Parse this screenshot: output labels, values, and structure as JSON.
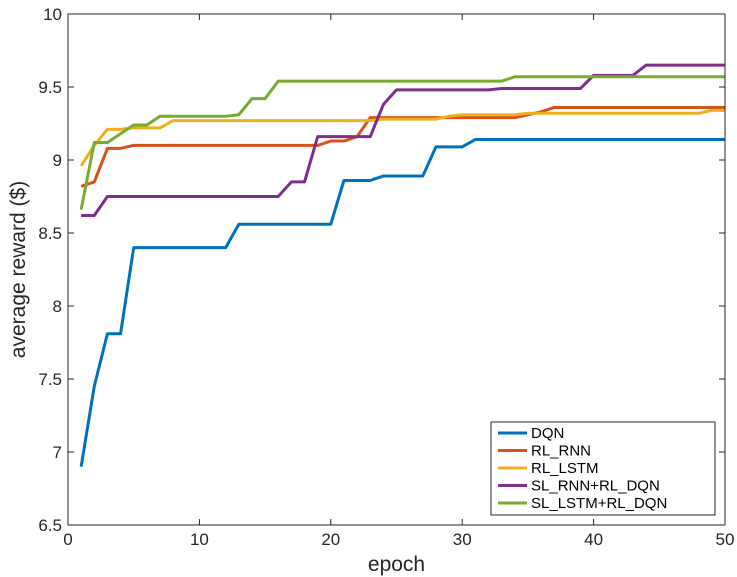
{
  "chart_data": {
    "type": "line",
    "title": "",
    "xlabel": "epoch",
    "ylabel": "average reward ($)",
    "xlim": [
      0,
      50
    ],
    "ylim": [
      6.5,
      10
    ],
    "xticks": [
      "0",
      "10",
      "20",
      "30",
      "40",
      "50"
    ],
    "yticks": [
      "6.5",
      "7",
      "7.5",
      "8",
      "8.5",
      "9",
      "9.5",
      "10"
    ],
    "grid": false,
    "legend_position": "bottom-right",
    "x": [
      1,
      2,
      3,
      4,
      5,
      6,
      7,
      8,
      9,
      10,
      11,
      12,
      13,
      14,
      15,
      16,
      17,
      18,
      19,
      20,
      21,
      22,
      23,
      24,
      25,
      26,
      27,
      28,
      29,
      30,
      31,
      32,
      33,
      34,
      35,
      36,
      37,
      38,
      39,
      40,
      41,
      42,
      43,
      44,
      45,
      46,
      47,
      48,
      49,
      50
    ],
    "series": [
      {
        "name": "DQN",
        "color": "#0072bd",
        "values": [
          6.9,
          7.45,
          7.81,
          7.81,
          8.4,
          8.4,
          8.4,
          8.4,
          8.4,
          8.4,
          8.4,
          8.4,
          8.56,
          8.56,
          8.56,
          8.56,
          8.56,
          8.56,
          8.56,
          8.56,
          8.86,
          8.86,
          8.86,
          8.89,
          8.89,
          8.89,
          8.89,
          9.09,
          9.09,
          9.09,
          9.14,
          9.14,
          9.14,
          9.14,
          9.14,
          9.14,
          9.14,
          9.14,
          9.14,
          9.14,
          9.14,
          9.14,
          9.14,
          9.14,
          9.14,
          9.14,
          9.14,
          9.14,
          9.14,
          9.14
        ]
      },
      {
        "name": "RL_RNN",
        "color": "#d95319",
        "values": [
          8.82,
          8.85,
          9.08,
          9.08,
          9.1,
          9.1,
          9.1,
          9.1,
          9.1,
          9.1,
          9.1,
          9.1,
          9.1,
          9.1,
          9.1,
          9.1,
          9.1,
          9.1,
          9.1,
          9.13,
          9.13,
          9.16,
          9.29,
          9.29,
          9.29,
          9.29,
          9.29,
          9.29,
          9.29,
          9.29,
          9.29,
          9.29,
          9.29,
          9.29,
          9.31,
          9.33,
          9.36,
          9.36,
          9.36,
          9.36,
          9.36,
          9.36,
          9.36,
          9.36,
          9.36,
          9.36,
          9.36,
          9.36,
          9.36,
          9.36
        ]
      },
      {
        "name": "RL_LSTM",
        "color": "#edb120",
        "values": [
          8.96,
          9.1,
          9.21,
          9.21,
          9.22,
          9.22,
          9.22,
          9.27,
          9.27,
          9.27,
          9.27,
          9.27,
          9.27,
          9.27,
          9.27,
          9.27,
          9.27,
          9.27,
          9.27,
          9.27,
          9.27,
          9.27,
          9.27,
          9.28,
          9.28,
          9.28,
          9.28,
          9.28,
          9.3,
          9.31,
          9.31,
          9.31,
          9.31,
          9.31,
          9.32,
          9.32,
          9.32,
          9.32,
          9.32,
          9.32,
          9.32,
          9.32,
          9.32,
          9.32,
          9.32,
          9.32,
          9.32,
          9.32,
          9.34,
          9.34
        ]
      },
      {
        "name": "SL_RNN+RL_DQN",
        "color": "#7e2f8e",
        "values": [
          8.62,
          8.62,
          8.75,
          8.75,
          8.75,
          8.75,
          8.75,
          8.75,
          8.75,
          8.75,
          8.75,
          8.75,
          8.75,
          8.75,
          8.75,
          8.75,
          8.85,
          8.85,
          9.16,
          9.16,
          9.16,
          9.16,
          9.16,
          9.38,
          9.48,
          9.48,
          9.48,
          9.48,
          9.48,
          9.48,
          9.48,
          9.48,
          9.49,
          9.49,
          9.49,
          9.49,
          9.49,
          9.49,
          9.49,
          9.58,
          9.58,
          9.58,
          9.58,
          9.65,
          9.65,
          9.65,
          9.65,
          9.65,
          9.65,
          9.65
        ]
      },
      {
        "name": "SL_LSTM+RL_DQN",
        "color": "#77ac30",
        "values": [
          8.66,
          9.12,
          9.12,
          9.18,
          9.24,
          9.24,
          9.3,
          9.3,
          9.3,
          9.3,
          9.3,
          9.3,
          9.31,
          9.42,
          9.42,
          9.54,
          9.54,
          9.54,
          9.54,
          9.54,
          9.54,
          9.54,
          9.54,
          9.54,
          9.54,
          9.54,
          9.54,
          9.54,
          9.54,
          9.54,
          9.54,
          9.54,
          9.54,
          9.57,
          9.57,
          9.57,
          9.57,
          9.57,
          9.57,
          9.57,
          9.57,
          9.57,
          9.57,
          9.57,
          9.57,
          9.57,
          9.57,
          9.57,
          9.57,
          9.57
        ]
      }
    ]
  }
}
